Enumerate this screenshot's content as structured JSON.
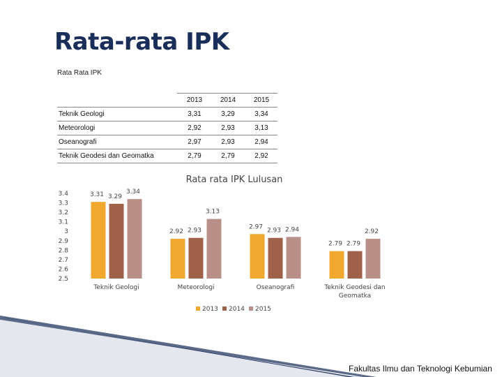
{
  "slide": {
    "title": "Rata-rata IPK",
    "table_caption": "Rata Rata IPK",
    "footer": "Fakultas Ilmu dan Teknologi Kebumian"
  },
  "table": {
    "columns": [
      "",
      "2013",
      "2014",
      "2015"
    ],
    "rows": [
      {
        "label": "Teknik Geologi",
        "values": [
          "3,31",
          "3,29",
          "3,34"
        ]
      },
      {
        "label": "Meteorologi",
        "values": [
          "2,92",
          "2,93",
          "3,13"
        ]
      },
      {
        "label": "Oseanografi",
        "values": [
          "2,97",
          "2,93",
          "2,94"
        ]
      },
      {
        "label": "Teknik Geodesi dan Geomatka",
        "values": [
          "2,79",
          "2,79",
          "2,92"
        ]
      }
    ]
  },
  "chart_data": {
    "type": "bar",
    "title": "Rata rata IPK Lulusan",
    "categories": [
      "Teknik Geologi",
      "Meteorologi",
      "Oseanografi",
      "Teknik Geodesi dan Geomatka"
    ],
    "series": [
      {
        "name": "2013",
        "values": [
          3.31,
          2.92,
          2.97,
          2.79
        ],
        "color": "#F0A830"
      },
      {
        "name": "2014",
        "values": [
          3.29,
          2.93,
          2.93,
          2.79
        ],
        "color": "#A0614A"
      },
      {
        "name": "2015",
        "values": [
          3.34,
          3.13,
          2.94,
          2.92
        ],
        "color": "#B89088"
      }
    ],
    "yticks": [
      "3.4",
      "3.3",
      "3.2",
      "3.1",
      "3",
      "2.9",
      "2.8",
      "2.7",
      "2.6",
      "2.5"
    ],
    "ylim": [
      2.5,
      3.4
    ],
    "legend_position": "bottom",
    "grid": false
  }
}
